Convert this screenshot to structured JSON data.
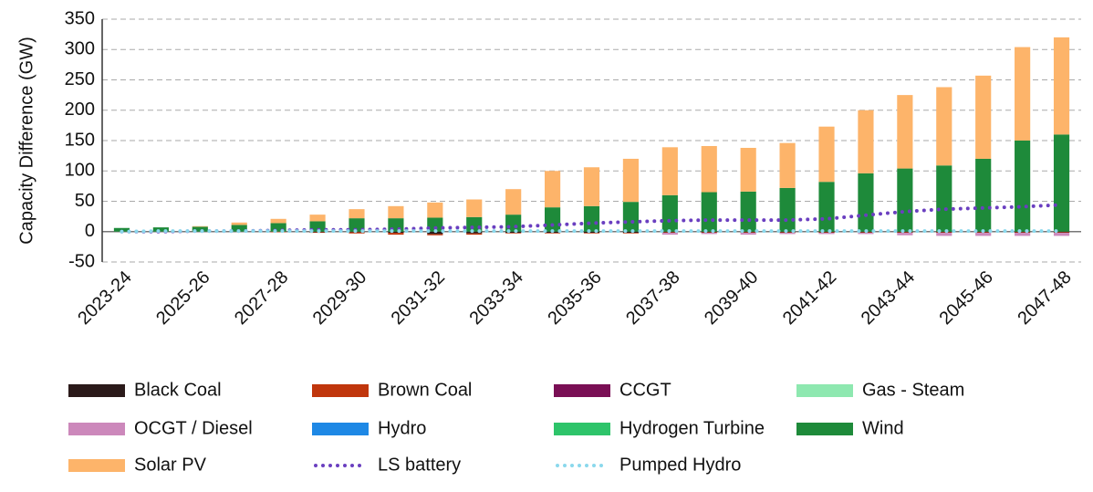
{
  "chart_data": {
    "type": "stacked-bar",
    "y_label": "Capacity Difference (GW)",
    "categories": [
      "2023-24",
      null,
      "2025-26",
      null,
      "2027-28",
      null,
      "2029-30",
      null,
      "2031-32",
      null,
      "2033-34",
      null,
      "2035-36",
      null,
      "2037-38",
      null,
      "2039-40",
      null,
      "2041-42",
      null,
      "2043-44",
      null,
      "2045-46",
      null,
      "2047-48"
    ],
    "ylim": [
      -50,
      350
    ],
    "yticks": [
      -50,
      0,
      50,
      100,
      150,
      200,
      250,
      300,
      350
    ],
    "grid": true,
    "legend": "bottom",
    "series": [
      {
        "name": "Black Coal",
        "color": "#2b1a1a",
        "kind": "bar",
        "values": [
          0,
          0,
          0,
          0,
          0,
          -1,
          -1,
          -2,
          -4,
          -3,
          -2,
          -2,
          -2,
          -2,
          -1,
          -1,
          -1,
          -1,
          -1,
          -1,
          -1,
          -1,
          -1,
          -1,
          -1
        ]
      },
      {
        "name": "Brown Coal",
        "color": "#c0360c",
        "kind": "bar",
        "values": [
          0,
          0,
          0,
          0,
          -1,
          -1,
          -2,
          -3,
          -2,
          -2,
          -1,
          -1,
          -1,
          -1,
          -1,
          -1,
          -1,
          -1,
          -1,
          -1,
          -1,
          -1,
          -1,
          -1,
          -1
        ]
      },
      {
        "name": "CCGT",
        "color": "#7a0f55",
        "kind": "bar",
        "values": [
          0,
          0,
          0,
          0,
          0,
          0,
          0,
          0,
          0,
          0,
          0,
          0,
          0,
          0,
          0,
          0,
          0,
          0,
          0,
          0,
          0,
          0,
          0,
          0,
          0
        ]
      },
      {
        "name": "Gas - Steam",
        "color": "#8ee8b0",
        "kind": "bar",
        "values": [
          0,
          0,
          0,
          0,
          0,
          0,
          0,
          0,
          0,
          0,
          0,
          0,
          0,
          0,
          0,
          0,
          0,
          0,
          0,
          0,
          0,
          0,
          0,
          0,
          0
        ]
      },
      {
        "name": "OCGT / Diesel",
        "color": "#cc88bb",
        "kind": "bar",
        "values": [
          0,
          0,
          0,
          0,
          0,
          0,
          0,
          0,
          0,
          0,
          0,
          0,
          0,
          0,
          -3,
          -2,
          -3,
          -2,
          -2,
          -2,
          -4,
          -5,
          -5,
          -5,
          -5
        ]
      },
      {
        "name": "Hydro",
        "color": "#1e88e5",
        "kind": "bar",
        "values": [
          0,
          0,
          0,
          0,
          0,
          0,
          0,
          0,
          0,
          0,
          0,
          0,
          0,
          0,
          0,
          0,
          0,
          0,
          0,
          0,
          0,
          0,
          0,
          0,
          0
        ]
      },
      {
        "name": "Hydrogen Turbine",
        "color": "#2ec46a",
        "kind": "bar",
        "values": [
          0,
          0,
          0,
          0,
          0,
          0,
          0,
          0,
          0,
          0,
          0,
          0,
          0,
          0,
          0,
          0,
          0,
          0,
          0,
          0,
          0,
          0,
          0,
          0,
          0
        ]
      },
      {
        "name": "Wind",
        "color": "#1e8a3a",
        "kind": "bar",
        "values": [
          6,
          7,
          8,
          11,
          14,
          17,
          22,
          22,
          23,
          24,
          28,
          40,
          42,
          49,
          60,
          65,
          66,
          72,
          82,
          96,
          104,
          109,
          120,
          150,
          160
        ]
      },
      {
        "name": "Solar PV",
        "color": "#fdb46a",
        "kind": "bar",
        "values": [
          0,
          0,
          1,
          4,
          7,
          11,
          15,
          20,
          25,
          29,
          42,
          60,
          64,
          71,
          79,
          76,
          72,
          74,
          91,
          104,
          121,
          129,
          137,
          154,
          160
        ]
      },
      {
        "name": "LS battery",
        "color": "#6a3fc0",
        "kind": "dotted-line",
        "values": [
          0,
          0,
          1,
          1,
          2,
          3,
          3,
          4,
          6,
          7,
          8,
          11,
          14,
          16,
          18,
          19,
          19,
          19,
          21,
          27,
          33,
          37,
          39,
          41,
          44
        ]
      },
      {
        "name": "Pumped Hydro",
        "color": "#8ad8ec",
        "kind": "dotted-line",
        "values": [
          0,
          1,
          1,
          1,
          1,
          1,
          1,
          1,
          1,
          1,
          1,
          1,
          1,
          1,
          1,
          1,
          1,
          1,
          1,
          1,
          1,
          1,
          1,
          1,
          1
        ]
      }
    ]
  }
}
